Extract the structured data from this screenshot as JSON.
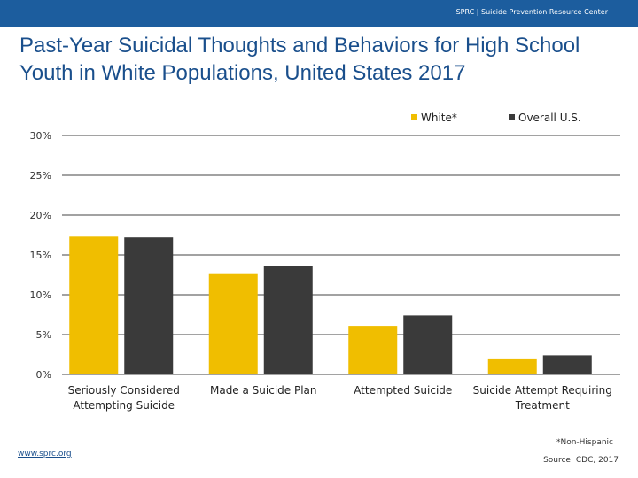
{
  "header": {
    "brand": "SPRC  |  Suicide Prevention Resource Center"
  },
  "title": "Past-Year Suicidal Thoughts and Behaviors for High School Youth in White Populations, United States 2017",
  "footer": {
    "link": "www.sprc.org",
    "footnote": "*Non-Hispanic",
    "source": "Source: CDC, 2017"
  },
  "colors": {
    "header_bg": "#1c5d9e",
    "title": "#1a4f8c",
    "white_series": "#f0be00",
    "overall_series": "#3a3a3a",
    "gridline": "#444444"
  },
  "chart_data": {
    "type": "bar",
    "title": "",
    "xlabel": "",
    "ylabel": "",
    "ylim": [
      0,
      30
    ],
    "yticks": [
      "0%",
      "5%",
      "10%",
      "15%",
      "20%",
      "25%",
      "30%"
    ],
    "grid": true,
    "legend_position": "top-right",
    "categories": [
      [
        "Seriously Considered",
        "Attempting Suicide"
      ],
      [
        "Made a Suicide Plan"
      ],
      [
        "Attempted Suicide"
      ],
      [
        "Suicide Attempt Requiring",
        "Treatment"
      ]
    ],
    "series": [
      {
        "name": "White*",
        "color": "#f0be00",
        "values": [
          17.3,
          12.7,
          6.1,
          1.9
        ]
      },
      {
        "name": "Overall U.S.",
        "color": "#3a3a3a",
        "values": [
          17.2,
          13.6,
          7.4,
          2.4
        ]
      }
    ]
  }
}
